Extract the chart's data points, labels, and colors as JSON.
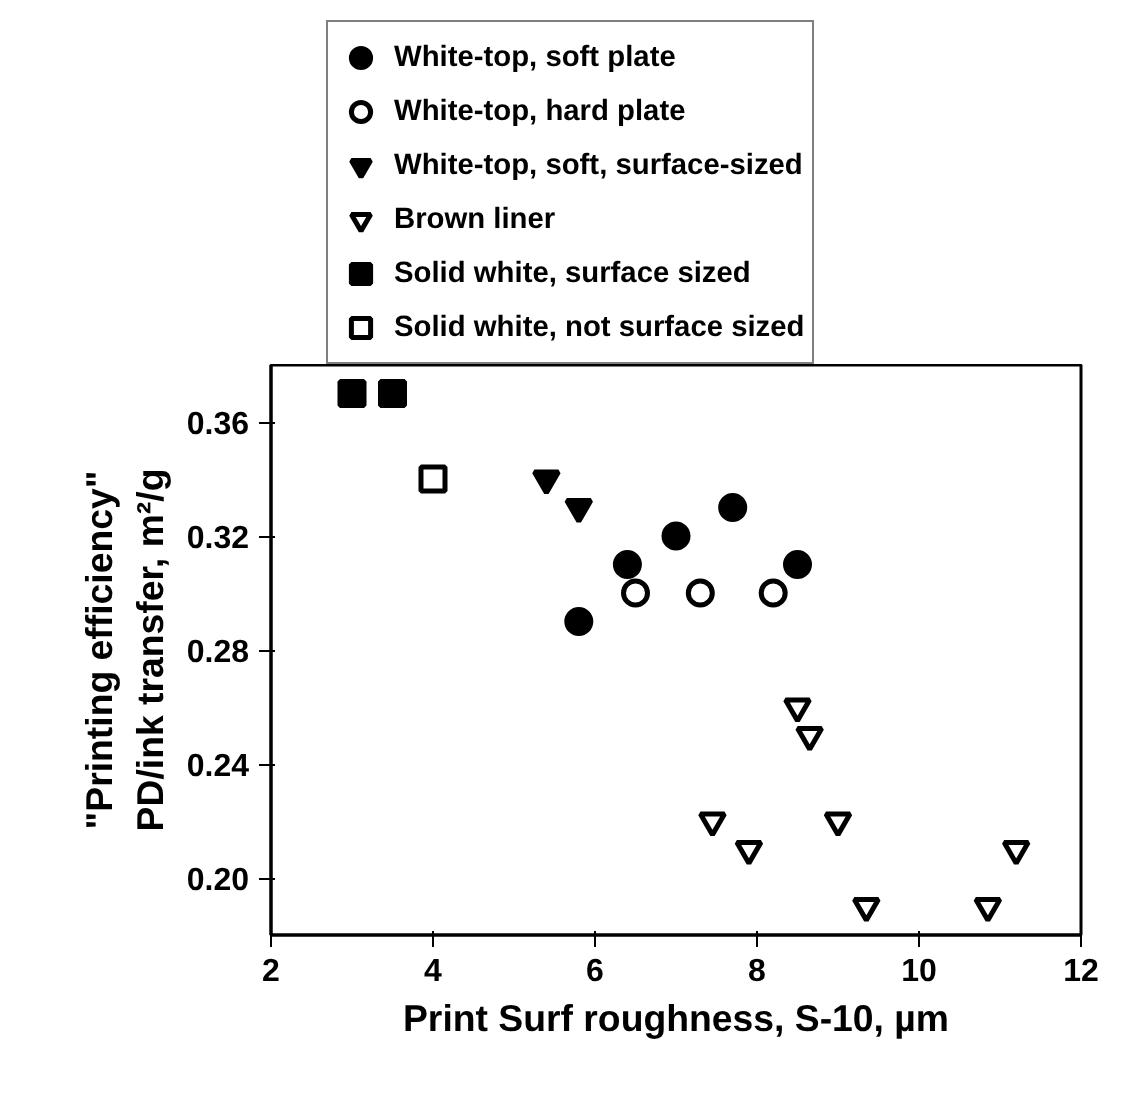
{
  "chart_data": {
    "type": "scatter",
    "xlabel": "Print Surf roughness, S-10, µm",
    "ylabel": "\"Printing efficiency\"\nPD/ink transfer, m²/g",
    "xlim": [
      2,
      12
    ],
    "xticks": [
      2,
      4,
      6,
      8,
      10,
      12
    ],
    "ylim": [
      0.18,
      0.38
    ],
    "yticks": [
      {
        "value": 0.2,
        "label": "0.20"
      },
      {
        "value": 0.24,
        "label": "0.24"
      },
      {
        "value": 0.28,
        "label": "0.28"
      },
      {
        "value": 0.32,
        "label": "0.32"
      },
      {
        "value": 0.36,
        "label": "0.36"
      }
    ],
    "legend": "top",
    "grid": false,
    "series": [
      {
        "name": "White-top, soft plate",
        "color": "#000000",
        "marker": "circle",
        "x": [
          5.8,
          6.4,
          7.0,
          7.7,
          8.5
        ],
        "values": [
          0.29,
          0.31,
          0.32,
          0.33,
          0.31
        ]
      },
      {
        "name": "White-top, hard plate",
        "color": "#ffffff",
        "marker": "circle",
        "x": [
          6.5,
          7.3,
          8.2
        ],
        "values": [
          0.3,
          0.3,
          0.3
        ]
      },
      {
        "name": "White-top, soft, surface-sized",
        "color": "#000000",
        "marker": "triangle",
        "x": [
          5.4,
          5.8
        ],
        "values": [
          0.34,
          0.33
        ]
      },
      {
        "name": "Brown liner",
        "color": "#ffffff",
        "marker": "triangle",
        "x": [
          8.5,
          8.65,
          7.45,
          7.9,
          9.0,
          9.35,
          10.85,
          11.2
        ],
        "values": [
          0.26,
          0.25,
          0.22,
          0.21,
          0.22,
          0.19,
          0.19,
          0.21
        ]
      },
      {
        "name": "Solid white, surface sized",
        "color": "#000000",
        "marker": "square",
        "x": [
          3.0,
          3.5
        ],
        "values": [
          0.37,
          0.37
        ]
      },
      {
        "name": "Solid white, not surface sized",
        "color": "#ffffff",
        "marker": "square",
        "x": [
          4.0
        ],
        "values": [
          0.34
        ]
      }
    ]
  }
}
